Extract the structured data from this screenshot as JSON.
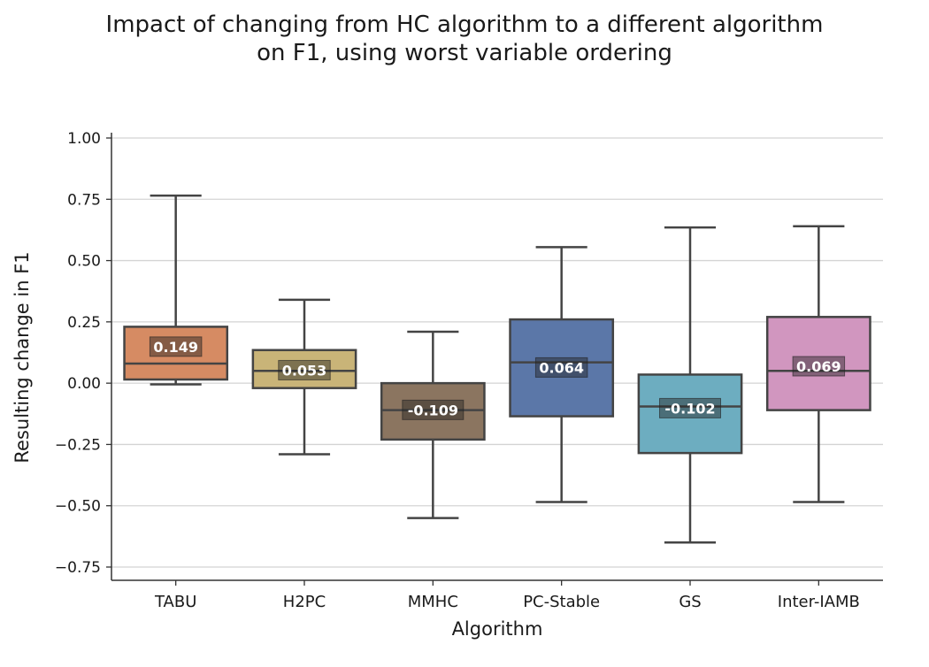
{
  "chart_data": {
    "type": "box",
    "title_lines": [
      "Impact of changing from HC algorithm to a different algorithm",
      "on F1, using worst variable ordering"
    ],
    "xlabel": "Algorithm",
    "ylabel": "Resulting change in F1",
    "ylim": [
      -0.8,
      1.02
    ],
    "yticks": [
      -0.75,
      -0.5,
      -0.25,
      0.0,
      0.25,
      0.5,
      0.75,
      1.0
    ],
    "ytick_labels": [
      "−0.75",
      "−0.50",
      "−0.25",
      "0.00",
      "0.25",
      "0.50",
      "0.75",
      "1.00"
    ],
    "grid": "horizontal",
    "categories": [
      "TABU",
      "H2PC",
      "MMHC",
      "PC-Stable",
      "GS",
      "Inter-IAMB"
    ],
    "boxes": [
      {
        "category": "TABU",
        "whisker_low": -0.005,
        "q1": 0.015,
        "median": 0.08,
        "q3": 0.23,
        "whisker_high": 0.765,
        "mean_label": "0.149",
        "mean": 0.149,
        "color": "#d68b63"
      },
      {
        "category": "H2PC",
        "whisker_low": -0.29,
        "q1": -0.02,
        "median": 0.05,
        "q3": 0.135,
        "whisker_high": 0.34,
        "mean_label": "0.053",
        "mean": 0.053,
        "color": "#c9b478"
      },
      {
        "category": "MMHC",
        "whisker_low": -0.55,
        "q1": -0.23,
        "median": -0.11,
        "q3": 0.0,
        "whisker_high": 0.21,
        "mean_label": "-0.109",
        "mean": -0.109,
        "color": "#8b7560"
      },
      {
        "category": "PC-Stable",
        "whisker_low": -0.485,
        "q1": -0.135,
        "median": 0.085,
        "q3": 0.26,
        "whisker_high": 0.555,
        "mean_label": "0.064",
        "mean": 0.064,
        "color": "#5b77a8"
      },
      {
        "category": "GS",
        "whisker_low": -0.65,
        "q1": -0.285,
        "median": -0.095,
        "q3": 0.035,
        "whisker_high": 0.635,
        "mean_label": "-0.102",
        "mean": -0.102,
        "color": "#6dadc0"
      },
      {
        "category": "Inter-IAMB",
        "whisker_low": -0.485,
        "q1": -0.11,
        "median": 0.05,
        "q3": 0.27,
        "whisker_high": 0.64,
        "mean_label": "0.069",
        "mean": 0.069,
        "color": "#d196bf"
      }
    ]
  }
}
